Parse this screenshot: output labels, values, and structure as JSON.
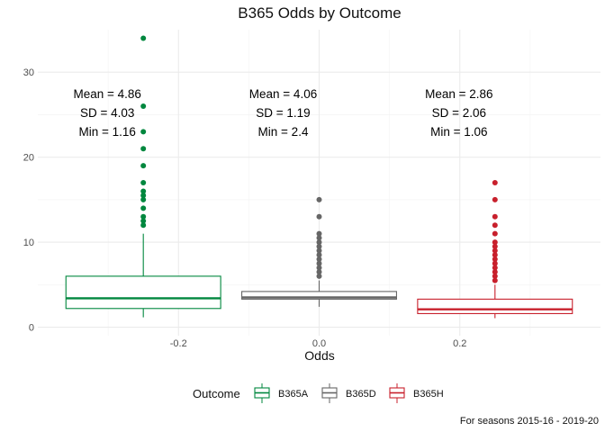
{
  "chart_data": {
    "type": "boxplot",
    "title": "B365 Odds by Outcome",
    "xlabel": "Odds",
    "ylabel": "",
    "caption": "For seasons 2015-16 - 2019-20",
    "x_ticks": [
      -0.2,
      0.0,
      0.2
    ],
    "x_tick_labels": [
      "-0.2",
      "0.0",
      "0.2"
    ],
    "xlim": [
      -0.4,
      0.4
    ],
    "y_ticks": [
      0,
      10,
      20,
      30
    ],
    "y_tick_labels": [
      "0",
      "10",
      "20",
      "30"
    ],
    "ylim": [
      -1,
      35
    ],
    "grid": true,
    "legend_title": "Outcome",
    "legend_position": "bottom",
    "series": [
      {
        "name": "B365A",
        "color": "#00873E",
        "box_x_range": [
          -0.36,
          -0.14
        ],
        "whisker_x": -0.25,
        "q1": 2.2,
        "median": 3.4,
        "q3": 6.0,
        "whisker_low": 1.16,
        "whisker_high": 11.0,
        "outliers": [
          12,
          12.5,
          13,
          14,
          15,
          15.5,
          16,
          17,
          19,
          21,
          23,
          26,
          34
        ],
        "stats_lines": [
          "Mean = 4.86",
          "SD = 4.03",
          "Min = 1.16"
        ]
      },
      {
        "name": "B365D",
        "color": "#666666",
        "box_x_range": [
          -0.11,
          0.11
        ],
        "whisker_x": 0.0,
        "q1": 3.3,
        "median": 3.5,
        "q3": 4.2,
        "whisker_low": 2.4,
        "whisker_high": 5.5,
        "outliers": [
          6,
          6.5,
          7,
          7.5,
          8,
          8.5,
          9,
          9.5,
          10,
          10.5,
          11,
          13,
          15
        ],
        "stats_lines": [
          "Mean = 4.06",
          "SD = 1.19",
          "Min = 2.4"
        ]
      },
      {
        "name": "B365H",
        "color": "#C8202C",
        "box_x_range": [
          0.14,
          0.36
        ],
        "whisker_x": 0.25,
        "q1": 1.6,
        "median": 2.1,
        "q3": 3.3,
        "whisker_low": 1.06,
        "whisker_high": 5.0,
        "outliers": [
          5.5,
          6,
          6.5,
          7,
          7.5,
          8,
          8.5,
          9,
          9.5,
          10,
          11,
          12,
          13,
          15,
          17
        ],
        "stats_lines": [
          "Mean = 2.86",
          "SD = 2.06",
          "Min = 1.06"
        ]
      }
    ]
  }
}
